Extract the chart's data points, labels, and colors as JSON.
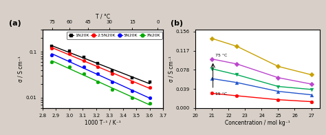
{
  "fig_width": 4.74,
  "fig_height": 1.96,
  "dpi": 100,
  "bg_color": "#d8d0c8",
  "axes_bg": "white",
  "panel_a": {
    "label": "(a)",
    "xlabel": "1000 T⁻¹ / K⁻¹",
    "ylabel": "σ / S cm⁻¹",
    "top_xlabel": "T / °C",
    "top_ticks": [
      75,
      60,
      45,
      30,
      15,
      0
    ],
    "xlim": [
      2.8,
      3.7
    ],
    "ylim_log": [
      0.006,
      0.3
    ],
    "yticks": [
      0.01,
      0.1
    ],
    "xticks": [
      2.8,
      2.9,
      3.0,
      3.1,
      3.2,
      3.3,
      3.4,
      3.5,
      3.6,
      3.7
    ],
    "series": [
      {
        "label": "1N20K",
        "color": "black",
        "marker": "s",
        "x": [
          2.87,
          3.0,
          3.11,
          3.21,
          3.32,
          3.47,
          3.6
        ],
        "y": [
          0.132,
          0.103,
          0.075,
          0.055,
          0.038,
          0.027,
          0.022
        ]
      },
      {
        "label": "2.5N20K",
        "color": "red",
        "marker": "o",
        "x": [
          2.87,
          3.0,
          3.11,
          3.21,
          3.32,
          3.47,
          3.6
        ],
        "y": [
          0.12,
          0.09,
          0.065,
          0.047,
          0.033,
          0.022,
          0.017
        ]
      },
      {
        "label": "5N20K",
        "color": "blue",
        "marker": "o",
        "x": [
          2.87,
          3.0,
          3.11,
          3.21,
          3.32,
          3.47,
          3.6
        ],
        "y": [
          0.083,
          0.065,
          0.047,
          0.033,
          0.022,
          0.014,
          0.01
        ]
      },
      {
        "label": "7N20K",
        "color": "#00aa00",
        "marker": "o",
        "x": [
          2.87,
          3.0,
          3.11,
          3.21,
          3.32,
          3.47,
          3.6
        ],
        "y": [
          0.06,
          0.047,
          0.033,
          0.022,
          0.015,
          0.01,
          0.0075
        ]
      }
    ]
  },
  "panel_b": {
    "label": "(b)",
    "xlabel": "Concentration / mol kg⁻¹",
    "ylabel": "σ / S cm⁻¹",
    "xlim": [
      20,
      27.5
    ],
    "ylim": [
      0.0,
      0.16
    ],
    "annotation_high": "75 °C",
    "annotation_low": "15 °C",
    "series": [
      {
        "color": "#c8a000",
        "marker": "D",
        "x": [
          21,
          22.5,
          25,
          27
        ],
        "y": [
          0.142,
          0.126,
          0.085,
          0.068
        ]
      },
      {
        "color": "#bb44cc",
        "marker": "D",
        "x": [
          21,
          22.5,
          25,
          27
        ],
        "y": [
          0.1,
          0.09,
          0.062,
          0.049
        ]
      },
      {
        "color": "#00aa55",
        "marker": "v",
        "x": [
          21,
          22.5,
          25,
          27
        ],
        "y": [
          0.08,
          0.068,
          0.044,
          0.038
        ]
      },
      {
        "color": "#2255cc",
        "marker": "^",
        "x": [
          21,
          22.5,
          25,
          27
        ],
        "y": [
          0.06,
          0.052,
          0.034,
          0.027
        ]
      },
      {
        "color": "red",
        "marker": "o",
        "x": [
          21,
          22.5,
          25,
          27
        ],
        "y": [
          0.03,
          0.025,
          0.017,
          0.013
        ]
      }
    ],
    "yticks": [
      0.0,
      0.039,
      0.078,
      0.117,
      0.156
    ],
    "xticks": [
      20,
      21,
      22,
      23,
      24,
      25,
      26,
      27
    ]
  }
}
